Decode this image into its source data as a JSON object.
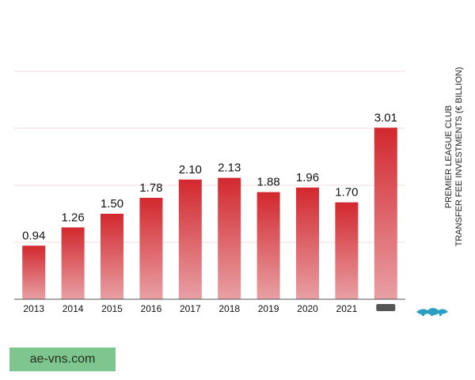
{
  "chart_data": {
    "type": "bar",
    "categories": [
      "2013",
      "2014",
      "2015",
      "2016",
      "2017",
      "2018",
      "2019",
      "2020",
      "2021",
      ""
    ],
    "values": [
      0.94,
      1.26,
      1.5,
      1.78,
      2.1,
      2.13,
      1.88,
      1.96,
      1.7,
      3.01
    ],
    "data_labels": [
      "0.94",
      "1.26",
      "1.50",
      "1.78",
      "2.10",
      "2.13",
      "1.88",
      "1.96",
      "1.70",
      "3.01"
    ],
    "title": "",
    "xlabel": "",
    "ylabel_lines": [
      "PREMIER LEAGUE CLUB",
      "TRANSFER FEE INVESTMENTS (€ BILLION)"
    ],
    "ylim": [
      0,
      4
    ],
    "grid": true,
    "legend": "none",
    "bar_color_top": "#d2282e",
    "bar_color_bottom": "#e8a0a4"
  },
  "watermark": "ae-vns.com"
}
